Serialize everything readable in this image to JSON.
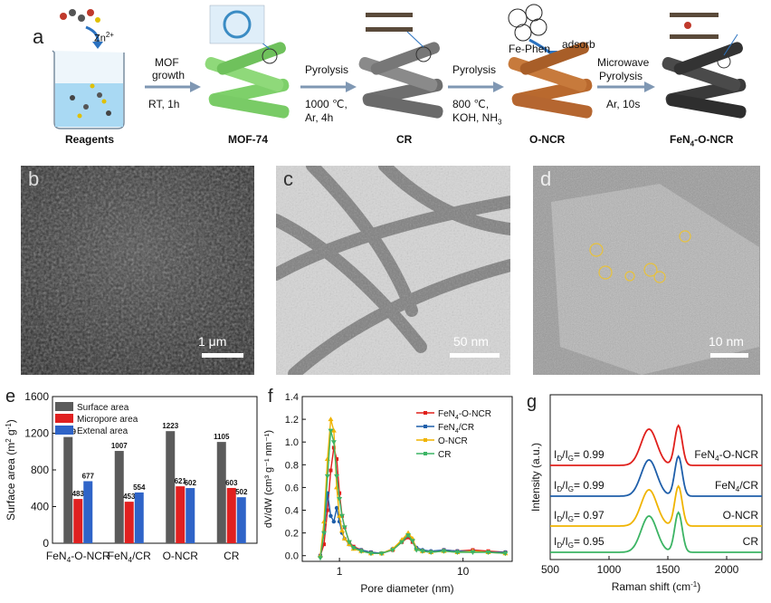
{
  "panel_a": {
    "letter": "a",
    "zn_label": "Zn",
    "zn_sup": "2+",
    "reagents_label": "Reagents",
    "step1_top": "MOF",
    "step1_top2": "growth",
    "step1_bottom": "RT, 1h",
    "mof_label": "MOF-74",
    "step2_top": "Pyrolysis",
    "step2_b1": "1000 ℃,",
    "step2_b2": "Ar, 4h",
    "cr_label": "CR",
    "step3_top": "Pyrolysis",
    "step3_b1": "800 ℃,",
    "step3_b2": "KOH, NH",
    "step3_b2_sub": "3",
    "fephen_label": "Fe-Phen",
    "adsorb_label": "adsorb",
    "oncr_label": "O-NCR",
    "step4_top": "Microwave",
    "step4_top2": "Pyrolysis",
    "step4_bottom": "Ar, 10s",
    "final_pre": "FeN",
    "final_sub": "4",
    "final_post": "-O-NCR"
  },
  "panel_b": {
    "letter": "b",
    "scale": "1 μm"
  },
  "panel_c": {
    "letter": "c",
    "scale": "50 nm"
  },
  "panel_d": {
    "letter": "d",
    "scale": "10 nm"
  },
  "colors": {
    "surface": "#5b5b5b",
    "micro": "#e02020",
    "external": "#2f64c8",
    "s_feno": "#e0201c",
    "s_fecr": "#1f5faa",
    "s_oncr": "#f0b400",
    "s_cr": "#3cb464",
    "mof_green": "#7ed06a",
    "cr_gray": "#6e6e6e",
    "oncr_brown": "#b9692e",
    "final_dark": "#3a3a3a",
    "arrow": "#7f97b3"
  },
  "chart_data": [
    {
      "panel": "e",
      "type": "bar",
      "categories": [
        "FeN4-O-NCR",
        "FeN4/CR",
        "O-NCR",
        "CR"
      ],
      "category_labels": [
        {
          "pre": "FeN",
          "sub": "4",
          "post": "-O-NCR"
        },
        {
          "pre": "FeN",
          "sub": "4",
          "post": "/CR"
        },
        {
          "pre": "O-NCR",
          "sub": "",
          "post": ""
        },
        {
          "pre": "CR",
          "sub": "",
          "post": ""
        }
      ],
      "series": [
        {
          "name": "Surface area",
          "values": [
            1159,
            1007,
            1223,
            1105
          ]
        },
        {
          "name": "Micropore area",
          "values": [
            483,
            453,
            621,
            603
          ]
        },
        {
          "name": "Extenal area",
          "values": [
            677,
            554,
            602,
            502
          ]
        }
      ],
      "ylabel": "Surface area (m",
      "ylabel_sup": "2",
      "ylabel_post": " g",
      "ylabel_sup2": "-1",
      "ylabel_end": ")",
      "ylim": [
        0,
        1600
      ],
      "yticks": [
        0,
        400,
        800,
        1200,
        1600
      ],
      "legend": "top-left"
    },
    {
      "panel": "f",
      "type": "line",
      "xlabel": "Pore diameter (nm)",
      "ylabel": "dV/dW (cm³ g⁻¹ nm⁻¹)",
      "xscale": "log",
      "xlim": [
        0.5,
        25
      ],
      "ylim": [
        -0.05,
        1.4
      ],
      "yticks": [
        0.0,
        0.2,
        0.4,
        0.6,
        0.8,
        1.0,
        1.2,
        1.4
      ],
      "xticks": [
        1,
        10
      ],
      "legend": "top-right",
      "series": [
        {
          "name": "FeN4-O-NCR",
          "legend_pre": "FeN",
          "legend_sub": "4",
          "legend_post": "-O-NCR",
          "x": [
            0.7,
            0.75,
            0.8,
            0.85,
            0.9,
            0.95,
            1.0,
            1.05,
            1.1,
            1.2,
            1.3,
            1.5,
            1.8,
            2.2,
            2.7,
            3.2,
            3.6,
            3.9,
            4.2,
            4.7,
            5.5,
            7,
            9,
            12,
            16,
            22
          ],
          "y": [
            0.0,
            0.1,
            0.4,
            0.75,
            0.95,
            0.85,
            0.55,
            0.35,
            0.25,
            0.12,
            0.08,
            0.05,
            0.03,
            0.02,
            0.05,
            0.12,
            0.16,
            0.12,
            0.06,
            0.04,
            0.03,
            0.05,
            0.04,
            0.05,
            0.04,
            0.03
          ]
        },
        {
          "name": "FeN4/CR",
          "legend_pre": "FeN",
          "legend_sub": "4",
          "legend_post": "/CR",
          "x": [
            0.7,
            0.75,
            0.8,
            0.85,
            0.9,
            0.95,
            1.0,
            1.05,
            1.1,
            1.2,
            1.3,
            1.5,
            1.8,
            2.2,
            2.7,
            3.2,
            3.6,
            3.9,
            4.2,
            4.7,
            5.5,
            7,
            9,
            12,
            16,
            22
          ],
          "y": [
            0.0,
            0.2,
            0.55,
            0.35,
            0.3,
            0.42,
            0.3,
            0.2,
            0.15,
            0.1,
            0.07,
            0.05,
            0.03,
            0.02,
            0.06,
            0.13,
            0.18,
            0.14,
            0.07,
            0.05,
            0.04,
            0.05,
            0.04,
            0.04,
            0.03,
            0.03
          ]
        },
        {
          "name": "O-NCR",
          "legend_pre": "O-NCR",
          "legend_sub": "",
          "legend_post": "",
          "x": [
            0.7,
            0.75,
            0.8,
            0.85,
            0.9,
            0.95,
            1.0,
            1.05,
            1.1,
            1.2,
            1.3,
            1.5,
            1.8,
            2.2,
            2.7,
            3.2,
            3.6,
            3.9,
            4.2,
            4.7,
            5.5,
            7,
            9,
            12,
            16,
            22
          ],
          "y": [
            0.0,
            0.3,
            0.85,
            1.2,
            1.1,
            0.6,
            0.35,
            0.22,
            0.15,
            0.1,
            0.06,
            0.04,
            0.02,
            0.02,
            0.06,
            0.14,
            0.2,
            0.15,
            0.06,
            0.04,
            0.03,
            0.04,
            0.03,
            0.04,
            0.03,
            0.02
          ]
        },
        {
          "name": "CR",
          "legend_pre": "CR",
          "legend_sub": "",
          "legend_post": "",
          "x": [
            0.7,
            0.75,
            0.8,
            0.85,
            0.9,
            0.95,
            1.0,
            1.05,
            1.1,
            1.2,
            1.3,
            1.5,
            1.8,
            2.2,
            2.7,
            3.2,
            3.6,
            3.9,
            4.2,
            4.7,
            5.5,
            7,
            9,
            12,
            16,
            22
          ],
          "y": [
            -0.02,
            0.2,
            0.7,
            1.1,
            1.0,
            0.7,
            0.5,
            0.35,
            0.25,
            0.12,
            0.07,
            0.04,
            0.02,
            0.02,
            0.05,
            0.12,
            0.18,
            0.13,
            0.05,
            0.04,
            0.03,
            0.04,
            0.03,
            0.03,
            0.03,
            0.02
          ]
        }
      ]
    },
    {
      "panel": "g",
      "type": "line",
      "xlabel": "Raman shift (cm",
      "xlabel_sup": "-1",
      "xlabel_end": ")",
      "ylabel": "Intensity (a.u.)",
      "xlim": [
        500,
        2300
      ],
      "xticks": [
        500,
        1000,
        1500,
        2000
      ],
      "series": [
        {
          "name": "FeN4-O-NCR",
          "label_pre": "FeN",
          "label_sub": "4",
          "label_post": "-O-NCR",
          "ratio": "0.99"
        },
        {
          "name": "FeN4/CR",
          "label_pre": "FeN",
          "label_sub": "4",
          "label_post": "/CR",
          "ratio": "0.99"
        },
        {
          "name": "O-NCR",
          "label_pre": "O-NCR",
          "label_sub": "",
          "label_post": "",
          "ratio": "0.97"
        },
        {
          "name": "CR",
          "label_pre": "CR",
          "label_sub": "",
          "label_post": "",
          "ratio": "0.95"
        }
      ],
      "ratio_prefix": "I",
      "ratio_d": "D",
      "ratio_slash": "/I",
      "ratio_g": "G",
      "ratio_eq": "= "
    }
  ],
  "panel_letters": {
    "e": "e",
    "f": "f",
    "g": "g"
  }
}
